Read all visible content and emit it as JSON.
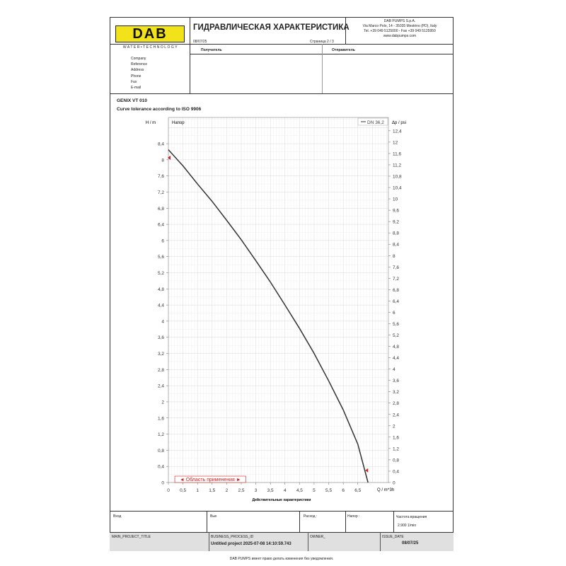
{
  "header": {
    "logo": "DAB",
    "tagline": "WATER•TECHNOLOGY",
    "title": "ГИДРАВЛИЧЕСКАЯ ХАРАКТЕРИСТИКА",
    "date": "08/07/25",
    "page": "Страница 2 / 3",
    "company_lines": [
      "DAB PUMPS S.p.A.",
      "Via Marco Polo, 14 - 35035 Mestrino (PD), Italy",
      "Tel. +39 049 5125000 - Fax +39 049 5125950",
      "www.dabpumps.com"
    ],
    "recipient": "Получатель",
    "sender": "Отправитель"
  },
  "contact_fields": [
    "Company",
    "Reference",
    "Address",
    "Phone",
    "Fax",
    "E-mail"
  ],
  "product": {
    "name": "GENIX VT 010",
    "tolerance": "Curve tolerance according to ISO 9906"
  },
  "chart_data": {
    "type": "line",
    "title": "Напор",
    "xlabel": "Q / m^3h",
    "ylabel": "H / m",
    "y2label": "Δp / psi",
    "footer_label": "Действительные характеристики",
    "xlim": [
      0,
      7.55
    ],
    "ylim": [
      0,
      9.05
    ],
    "y2lim": [
      0,
      12.87
    ],
    "grid": true,
    "xticks": [
      0,
      0.5,
      1,
      1.5,
      2,
      2.5,
      3,
      3.5,
      4,
      4.5,
      5,
      5.5,
      6,
      6.5
    ],
    "xtick_labels": [
      "0",
      "0,5",
      "1",
      "1,5",
      "2",
      "2,5",
      "3",
      "3,5",
      "4",
      "4,5",
      "5",
      "5,5",
      "6",
      "6,5"
    ],
    "yticks": [
      0,
      0.4,
      0.8,
      1.2,
      1.6,
      2,
      2.4,
      2.8,
      3.2,
      3.6,
      4,
      4.4,
      4.8,
      5.2,
      5.6,
      6,
      6.4,
      6.8,
      7.2,
      7.6,
      8,
      8.4
    ],
    "y2ticks": [
      0,
      0.4,
      0.8,
      1.2,
      1.6,
      2,
      2.4,
      2.8,
      3.2,
      3.6,
      4,
      4.4,
      4.8,
      5.2,
      5.6,
      6,
      6.4,
      6.8,
      7.2,
      7.6,
      8,
      8.4,
      8.8,
      9.2,
      9.6,
      10,
      10.4,
      10.8,
      11.2,
      11.6,
      12,
      12.4
    ],
    "legend": {
      "label": "DN 36,2",
      "placement": "top-right"
    },
    "series": [
      {
        "name": "DN 36,2",
        "color": "#333333",
        "x": [
          0,
          0.5,
          1,
          1.5,
          2,
          2.5,
          3,
          3.5,
          4,
          4.5,
          5,
          5.5,
          6,
          6.5,
          6.85
        ],
        "y": [
          8.25,
          7.85,
          7.4,
          6.97,
          6.5,
          6.02,
          5.5,
          4.97,
          4.4,
          3.82,
          3.2,
          2.52,
          1.8,
          0.95,
          0
        ]
      }
    ],
    "markers": [
      {
        "x": 0,
        "y": 8.05,
        "color": "#cc2222"
      },
      {
        "x": 6.78,
        "y": 0.3,
        "color": "#cc2222"
      }
    ],
    "application_range": {
      "label": "◄ Область применения ►",
      "from": 0.22,
      "to": 2.66,
      "color": "#cc2222"
    }
  },
  "bottom": {
    "inlet": "Вход",
    "outlet": "Вых",
    "flow": "Расход :",
    "head": "Напор :",
    "speed_label": "Частота вращения",
    "speed": "2.900 1/min"
  },
  "meta": {
    "main_project_title": "MAIN_PROJECT_TITLE",
    "bp_label": "BUSINESS_PROCESS_ID",
    "bp_value": "Untitled project 2025-07-08 14:10:59.743",
    "owner": "OWNER_",
    "issue_label": "ISSUE_DATE",
    "issue_value": "08/07/25"
  },
  "footer": "DAB PUMPS имеет право делать изменения без уведомления."
}
